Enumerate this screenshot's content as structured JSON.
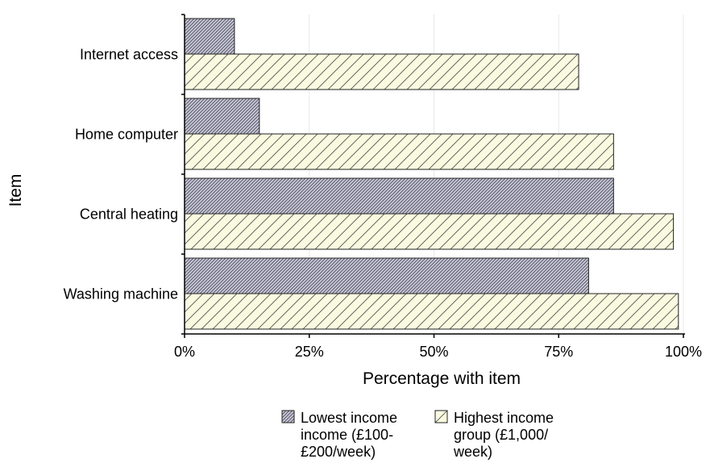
{
  "chart_data": {
    "type": "bar",
    "orientation": "horizontal",
    "categories": [
      "Internet access",
      "Home computer",
      "Central heating",
      "Washing machine"
    ],
    "series": [
      {
        "name": "Lowest income income (£100-£200/week)",
        "legend_lines": [
          "Lowest income",
          "income (£100-",
          "£200/week)"
        ],
        "values": [
          10,
          15,
          86,
          81
        ],
        "fill": "#c9c9d6",
        "pattern": "dense-diagonal-hatch"
      },
      {
        "name": "Highest income group (£1,000/week)",
        "legend_lines": [
          "Highest income",
          "group (£1,000/",
          "week)"
        ],
        "values": [
          79,
          86,
          98,
          99
        ],
        "fill": "#fafae0",
        "pattern": "sparse-diagonal-hatch"
      }
    ],
    "xlabel": "Percentage with item",
    "ylabel": "Item",
    "xlim": [
      0,
      100
    ],
    "xticks": [
      {
        "value": 0,
        "label": "0%"
      },
      {
        "value": 25,
        "label": "25%"
      },
      {
        "value": 50,
        "label": "50%"
      },
      {
        "value": 75,
        "label": "75%"
      },
      {
        "value": 100,
        "label": "100%"
      }
    ],
    "grid": true,
    "legend_position": "bottom"
  }
}
